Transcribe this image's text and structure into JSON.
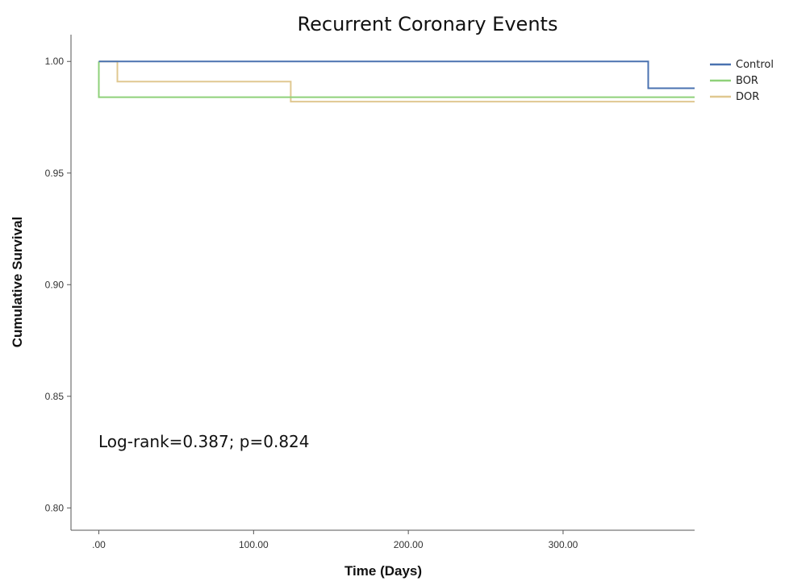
{
  "chart_data": {
    "type": "line",
    "step": true,
    "title": "Recurrent Coronary Events",
    "xlabel": "Time (Days)",
    "ylabel": "Cumulative Survival",
    "xlim": [
      -18,
      385
    ],
    "ylim": [
      0.79,
      1.012
    ],
    "x_ticks": [
      0,
      100,
      200,
      300
    ],
    "x_tick_labels": [
      ".00",
      "100.00",
      "200.00",
      "300.00"
    ],
    "y_ticks": [
      0.8,
      0.85,
      0.9,
      0.95,
      1.0
    ],
    "y_tick_labels": [
      "0.80",
      "0.85",
      "0.90",
      "0.95",
      "1.00"
    ],
    "grid": false,
    "legend_position": "top-right",
    "series": [
      {
        "name": "Control",
        "color": "#4a72b0",
        "points": [
          [
            0,
            1.0
          ],
          [
            355,
            1.0
          ],
          [
            355,
            0.988
          ],
          [
            385,
            0.988
          ]
        ]
      },
      {
        "name": "BOR",
        "color": "#8fd17a",
        "points": [
          [
            0,
            1.0
          ],
          [
            0,
            0.984
          ],
          [
            385,
            0.984
          ]
        ]
      },
      {
        "name": "DOR",
        "color": "#e0c890",
        "points": [
          [
            0,
            1.0
          ],
          [
            12,
            1.0
          ],
          [
            12,
            0.991
          ],
          [
            124,
            0.991
          ],
          [
            124,
            0.982
          ],
          [
            385,
            0.982
          ]
        ]
      }
    ],
    "annotations": [
      {
        "text": "Log-rank=0.387; p=0.824"
      }
    ]
  }
}
